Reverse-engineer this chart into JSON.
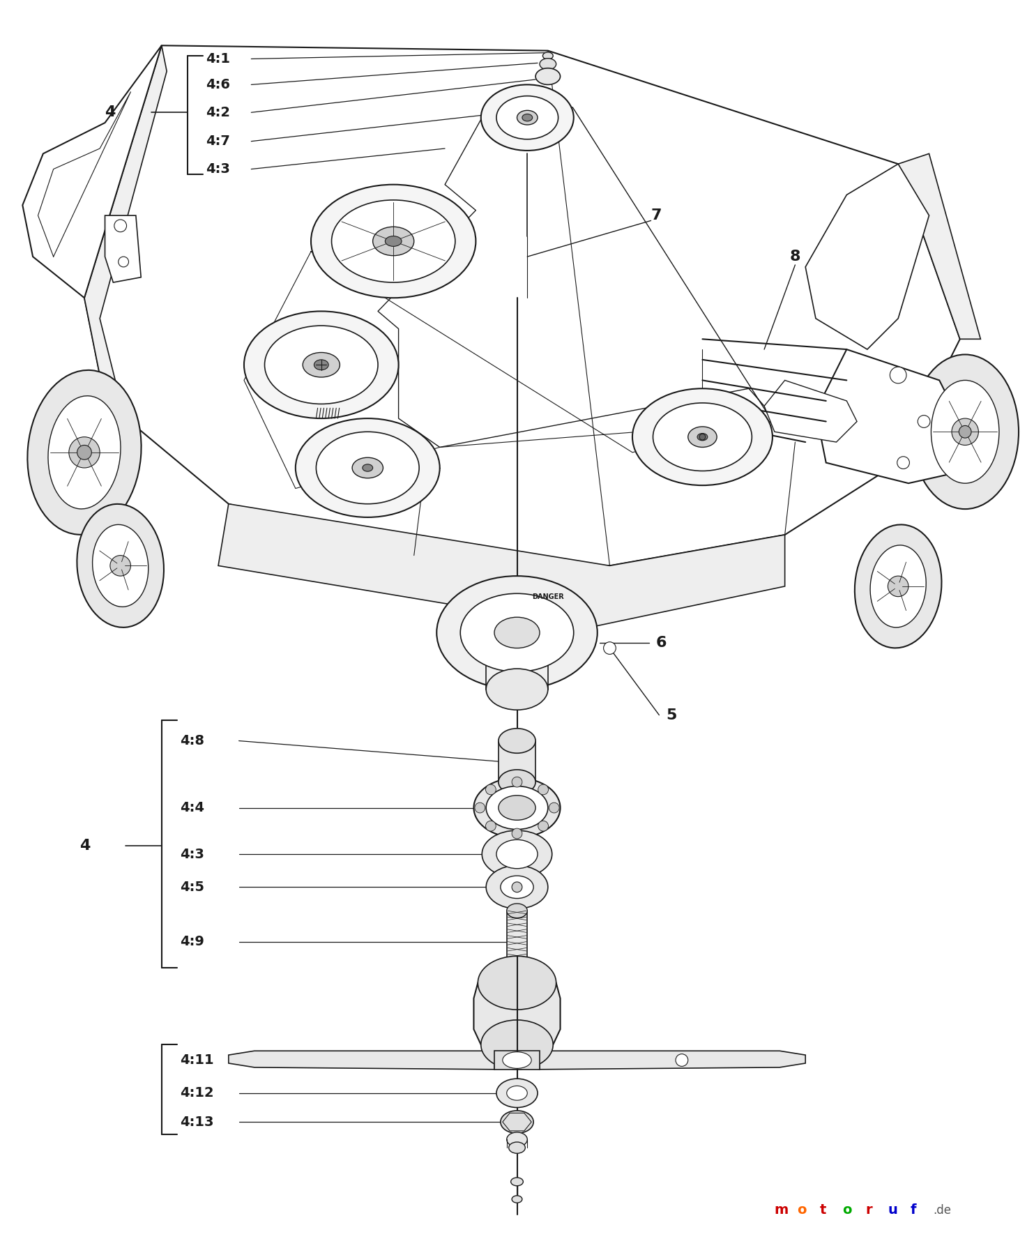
{
  "bg_color": "#ffffff",
  "line_color": "#1a1a1a",
  "fig_width": 14.83,
  "fig_height": 18.0,
  "bracket_top_labels": [
    "4:1",
    "4:6",
    "4:2",
    "4:7",
    "4:3"
  ],
  "bracket_top_ref": "4",
  "bracket_bottom_labels": [
    "4:8",
    "4:4",
    "4:3",
    "4:5",
    "4:9"
  ],
  "bracket_bottom_ref": "4",
  "bottom_part_labels": [
    "4:11",
    "4:12",
    "4:13"
  ],
  "part_labels_right": [
    "7",
    "8"
  ],
  "part_labels_center": [
    "5",
    "6"
  ],
  "motoruf_letters": [
    "m",
    "o",
    "t",
    "o",
    "r",
    "u",
    "f"
  ],
  "motoruf_colors": [
    "#cc0000",
    "#ff6600",
    "#cc0000",
    "#00aa00",
    "#cc0000",
    "#0000cc",
    "#0000cc"
  ],
  "motoruf_de_color": "#555555"
}
